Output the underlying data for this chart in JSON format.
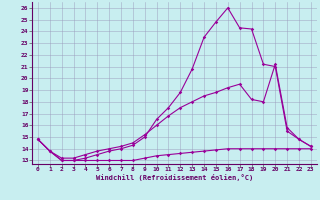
{
  "xlabel": "Windchill (Refroidissement éolien,°C)",
  "bg_color": "#c8eef0",
  "line_color": "#990099",
  "grid_color": "#9999bb",
  "xlim": [
    -0.5,
    23.5
  ],
  "ylim": [
    12.7,
    26.5
  ],
  "yticks": [
    13,
    14,
    15,
    16,
    17,
    18,
    19,
    20,
    21,
    22,
    23,
    24,
    25,
    26
  ],
  "xticks": [
    0,
    1,
    2,
    3,
    4,
    5,
    6,
    7,
    8,
    9,
    10,
    11,
    12,
    13,
    14,
    15,
    16,
    17,
    18,
    19,
    20,
    21,
    22,
    23
  ],
  "line1_x": [
    0,
    1,
    2,
    3,
    4,
    5,
    6,
    7,
    8,
    9,
    10,
    11,
    12,
    13,
    14,
    15,
    16,
    17,
    18,
    19,
    20,
    21,
    22,
    23
  ],
  "line1_y": [
    14.8,
    13.8,
    13.0,
    13.0,
    13.0,
    13.0,
    13.0,
    13.0,
    13.0,
    13.2,
    13.4,
    13.5,
    13.6,
    13.7,
    13.8,
    13.9,
    14.0,
    14.0,
    14.0,
    14.0,
    14.0,
    14.0,
    14.0,
    14.0
  ],
  "line2_x": [
    0,
    1,
    2,
    3,
    4,
    5,
    6,
    7,
    8,
    9,
    10,
    11,
    12,
    13,
    14,
    15,
    16,
    17,
    18,
    19,
    20,
    21,
    22,
    23
  ],
  "line2_y": [
    14.8,
    13.8,
    13.2,
    13.2,
    13.5,
    13.8,
    14.0,
    14.2,
    14.5,
    15.2,
    16.0,
    16.8,
    17.5,
    18.0,
    18.5,
    18.8,
    19.2,
    19.5,
    18.2,
    18.0,
    21.2,
    15.8,
    14.8,
    14.2
  ],
  "line3_x": [
    0,
    1,
    2,
    3,
    4,
    5,
    6,
    7,
    8,
    9,
    10,
    11,
    12,
    13,
    14,
    15,
    16,
    17,
    18,
    19,
    20,
    21,
    22,
    23
  ],
  "line3_y": [
    14.8,
    13.8,
    13.0,
    13.0,
    13.2,
    13.5,
    13.8,
    14.0,
    14.3,
    15.0,
    16.5,
    17.5,
    18.8,
    20.8,
    23.5,
    24.8,
    26.0,
    24.3,
    24.2,
    21.2,
    21.0,
    15.5,
    14.8,
    14.2
  ]
}
